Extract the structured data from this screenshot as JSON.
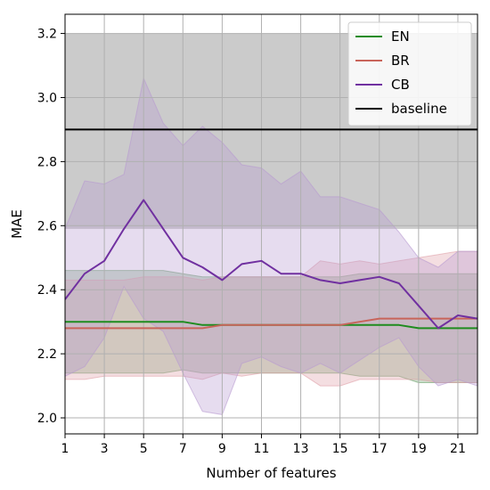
{
  "chart_data": {
    "type": "line",
    "xlabel": "Number of features",
    "ylabel": "MAE",
    "xlim": [
      1,
      22
    ],
    "ylim": [
      1.95,
      3.26
    ],
    "xticks": [
      1,
      3,
      5,
      7,
      9,
      11,
      13,
      15,
      17,
      19,
      21
    ],
    "yticks": [
      2.0,
      2.2,
      2.4,
      2.6,
      2.8,
      3.0,
      3.2
    ],
    "xtick_labels": [
      "1",
      "3",
      "5",
      "7",
      "9",
      "11",
      "13",
      "15",
      "17",
      "19",
      "21"
    ],
    "ytick_labels": [
      "2.0",
      "2.2",
      "2.4",
      "2.6",
      "2.8",
      "3.0",
      "3.2"
    ],
    "grid": true,
    "legend_position": "top-right",
    "x": [
      1,
      2,
      3,
      4,
      5,
      6,
      7,
      8,
      9,
      10,
      11,
      12,
      13,
      14,
      15,
      16,
      17,
      18,
      19,
      20,
      21,
      22
    ],
    "series": [
      {
        "name": "EN",
        "color": "#1e8c1e",
        "band_color": "#6aa06a",
        "values": [
          2.3,
          2.3,
          2.3,
          2.3,
          2.3,
          2.3,
          2.3,
          2.29,
          2.29,
          2.29,
          2.29,
          2.29,
          2.29,
          2.29,
          2.29,
          2.29,
          2.29,
          2.29,
          2.28,
          2.28,
          2.28,
          2.28
        ],
        "upper": [
          2.46,
          2.46,
          2.46,
          2.46,
          2.46,
          2.46,
          2.45,
          2.44,
          2.44,
          2.44,
          2.44,
          2.44,
          2.44,
          2.44,
          2.44,
          2.45,
          2.45,
          2.45,
          2.45,
          2.45,
          2.45,
          2.45
        ],
        "lower": [
          2.14,
          2.14,
          2.14,
          2.14,
          2.14,
          2.14,
          2.15,
          2.14,
          2.14,
          2.14,
          2.14,
          2.14,
          2.14,
          2.14,
          2.14,
          2.13,
          2.13,
          2.13,
          2.11,
          2.11,
          2.11,
          2.11
        ]
      },
      {
        "name": "BR",
        "color": "#c8645a",
        "band_color": "#e0a0a8",
        "values": [
          2.28,
          2.28,
          2.28,
          2.28,
          2.28,
          2.28,
          2.28,
          2.28,
          2.29,
          2.29,
          2.29,
          2.29,
          2.29,
          2.29,
          2.29,
          2.3,
          2.31,
          2.31,
          2.31,
          2.31,
          2.31,
          2.31
        ],
        "upper": [
          2.43,
          2.43,
          2.43,
          2.43,
          2.44,
          2.44,
          2.44,
          2.43,
          2.44,
          2.44,
          2.44,
          2.44,
          2.44,
          2.49,
          2.48,
          2.49,
          2.48,
          2.49,
          2.5,
          2.51,
          2.52,
          2.52
        ],
        "lower": [
          2.12,
          2.12,
          2.13,
          2.13,
          2.13,
          2.13,
          2.13,
          2.12,
          2.14,
          2.13,
          2.14,
          2.14,
          2.14,
          2.1,
          2.1,
          2.12,
          2.12,
          2.12,
          2.12,
          2.11,
          2.11,
          2.11
        ]
      },
      {
        "name": "CB",
        "color": "#7030a0",
        "band_color": "#b89ad0",
        "values": [
          2.37,
          2.45,
          2.49,
          2.59,
          2.68,
          2.59,
          2.5,
          2.47,
          2.43,
          2.48,
          2.49,
          2.45,
          2.45,
          2.43,
          2.42,
          2.43,
          2.44,
          2.42,
          2.35,
          2.28,
          2.32,
          2.31
        ],
        "upper": [
          2.59,
          2.74,
          2.73,
          2.76,
          3.06,
          2.92,
          2.85,
          2.91,
          2.86,
          2.79,
          2.78,
          2.73,
          2.77,
          2.69,
          2.69,
          2.67,
          2.65,
          2.58,
          2.5,
          2.47,
          2.52,
          2.52
        ],
        "lower": [
          2.13,
          2.16,
          2.25,
          2.41,
          2.31,
          2.27,
          2.14,
          2.02,
          2.01,
          2.17,
          2.19,
          2.16,
          2.14,
          2.17,
          2.14,
          2.18,
          2.22,
          2.25,
          2.16,
          2.1,
          2.12,
          2.1
        ]
      }
    ],
    "baseline": {
      "name": "baseline",
      "color": "#000000",
      "band_color": "#a0a0a0",
      "value": 2.9,
      "upper": 3.2,
      "lower": 2.59
    }
  }
}
